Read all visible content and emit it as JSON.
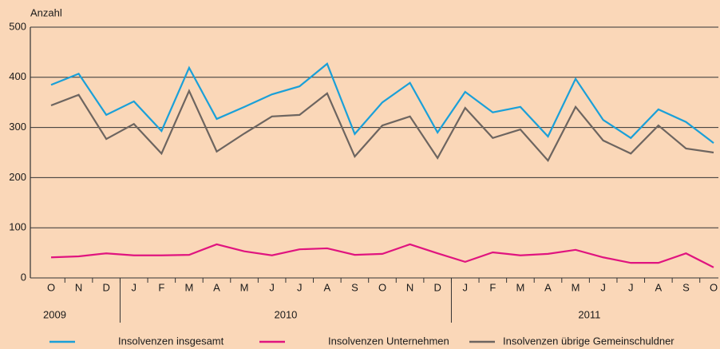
{
  "chart_data": {
    "type": "line",
    "y_axis_label": "Anzahl",
    "categories": [
      "O",
      "N",
      "D",
      "J",
      "F",
      "M",
      "A",
      "M",
      "J",
      "J",
      "A",
      "S",
      "O",
      "N",
      "D",
      "J",
      "F",
      "M",
      "A",
      "M",
      "J",
      "J",
      "A",
      "S",
      "O"
    ],
    "year_groups": [
      {
        "label": "2009",
        "size": 3
      },
      {
        "label": "2010",
        "size": 12
      },
      {
        "label": "2011",
        "size": 10
      }
    ],
    "series": [
      {
        "name": "Insolvenzen insgesamt",
        "color": "#1aa0d8",
        "values": [
          385,
          407,
          325,
          352,
          293,
          419,
          317,
          341,
          366,
          382,
          427,
          287,
          350,
          389,
          290,
          371,
          330,
          341,
          282,
          397,
          315,
          279,
          336,
          311,
          269
        ]
      },
      {
        "name": "Insolvenzen Unternehmen",
        "color": "#e0147f",
        "values": [
          41,
          43,
          49,
          45,
          45,
          46,
          67,
          53,
          45,
          57,
          59,
          46,
          48,
          67,
          49,
          32,
          51,
          45,
          48,
          56,
          41,
          30,
          30,
          49,
          21
        ]
      },
      {
        "name": "Insolvenzen übrige Gemeinschuldner",
        "color": "#6d6560",
        "values": [
          344,
          365,
          277,
          307,
          248,
          373,
          252,
          288,
          322,
          325,
          368,
          242,
          304,
          322,
          239,
          339,
          279,
          296,
          234,
          341,
          274,
          248,
          304,
          258,
          250
        ]
      }
    ],
    "ylim": [
      0,
      500
    ],
    "yticks": [
      0,
      100,
      200,
      300,
      400,
      500
    ],
    "grid": true
  }
}
